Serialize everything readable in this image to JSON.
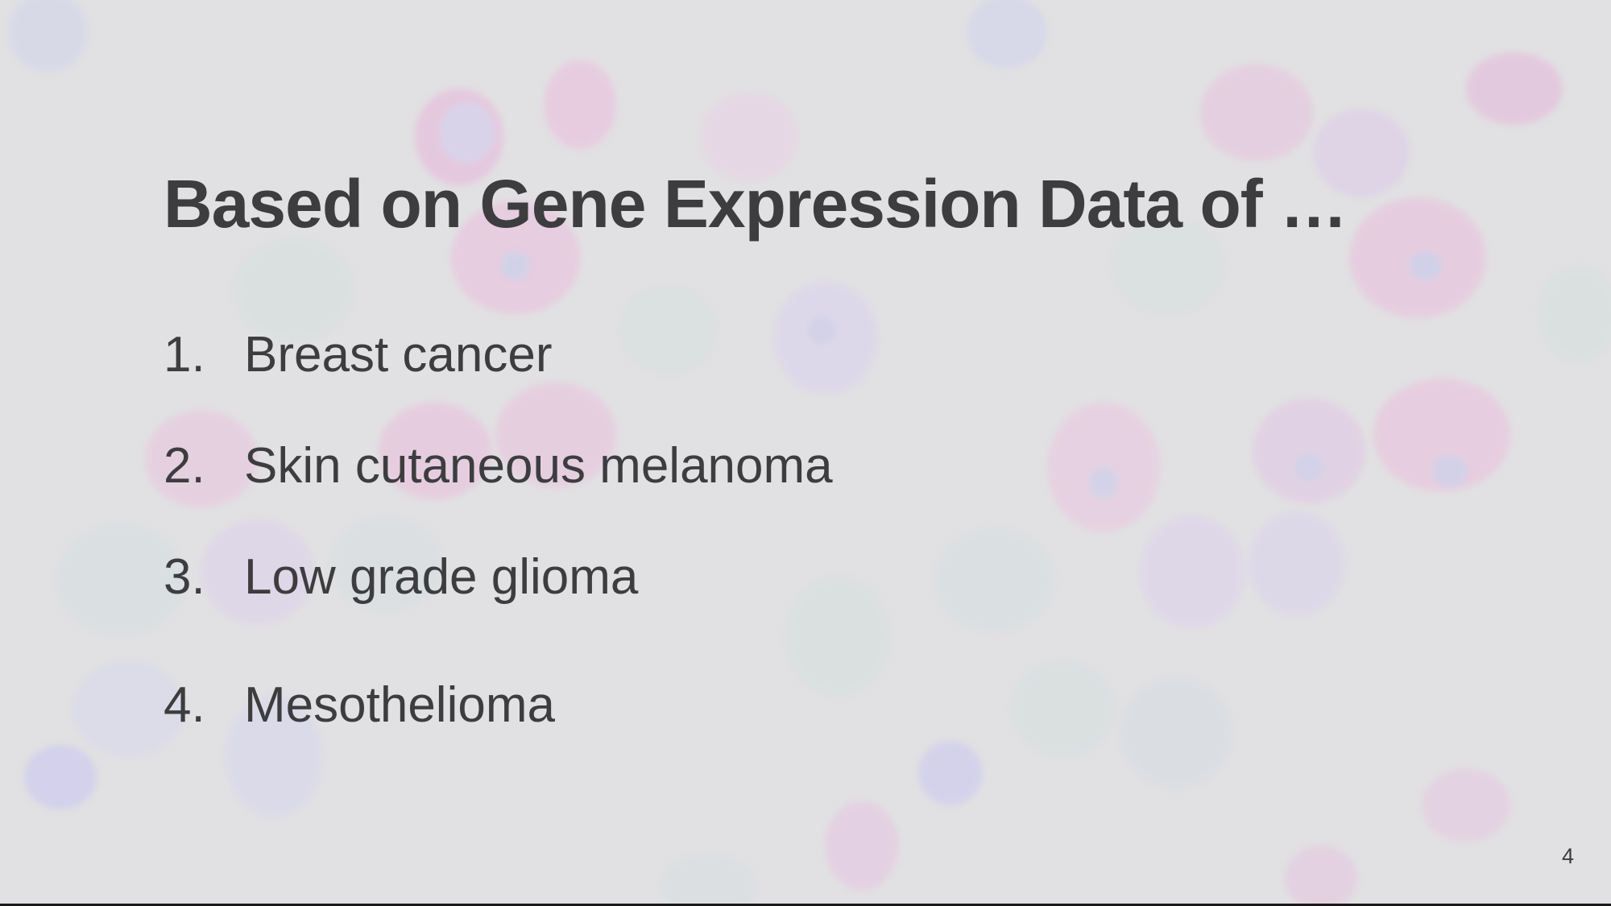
{
  "slide": {
    "title": "Based on Gene Expression Data of …",
    "items": [
      {
        "number": "1.",
        "label": "Breast cancer"
      },
      {
        "number": "2.",
        "label": "Skin cutaneous melanoma"
      },
      {
        "number": "3.",
        "label": "Low grade glioma"
      },
      {
        "number": "4.",
        "label": "Mesothelioma"
      }
    ],
    "page_number": "4"
  },
  "colors": {
    "background": "#e1e0e2",
    "text": "#3d3d3f",
    "cell_pink": "#e9a9d6",
    "cell_blue": "#c7c9f2",
    "cell_green": "#cfe3dd"
  }
}
